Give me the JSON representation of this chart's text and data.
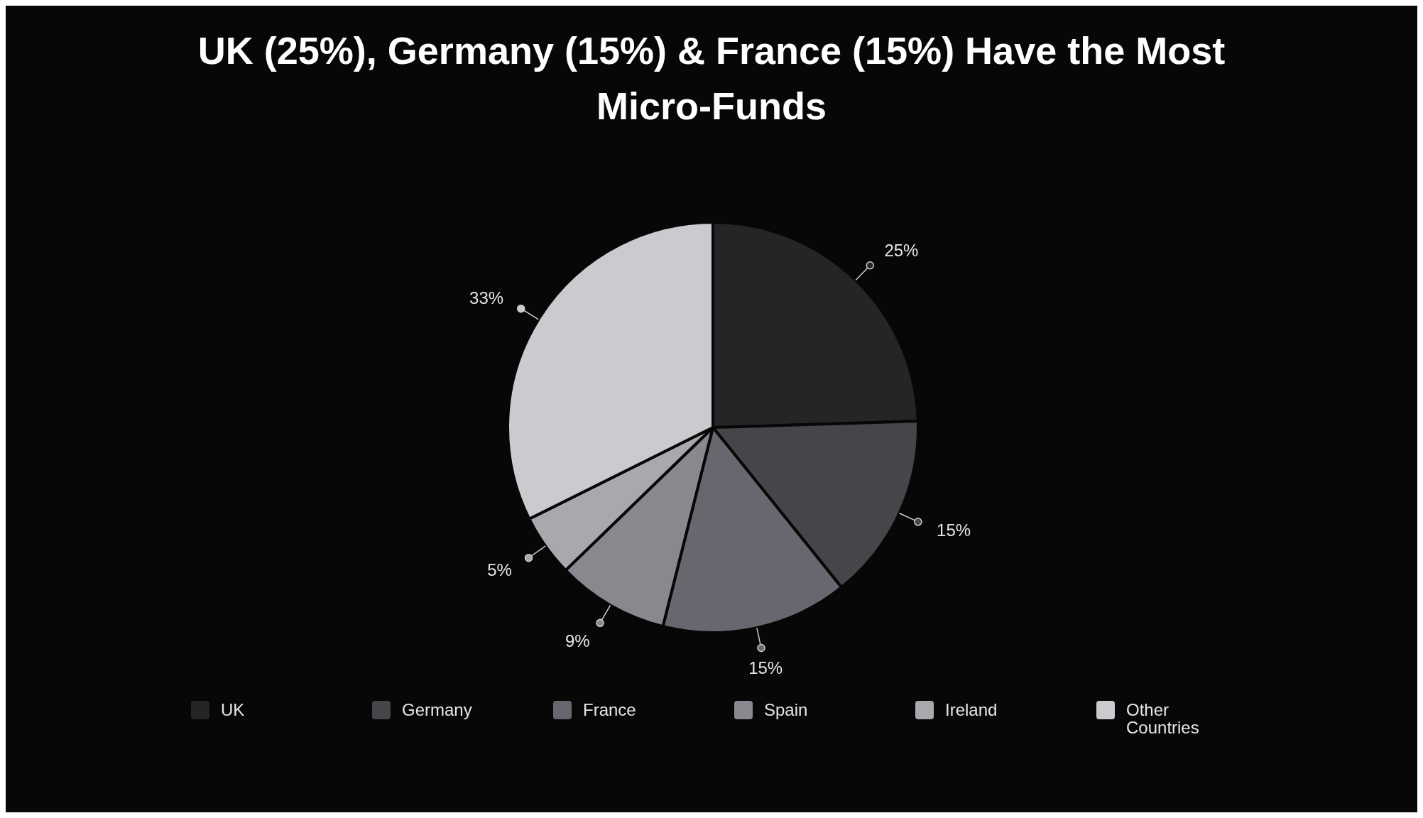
{
  "chart_data": {
    "type": "pie",
    "title": "UK (25%), Germany (15%) & France (15%) Have the Most Micro-Funds",
    "categories": [
      "UK",
      "Germany",
      "France",
      "Spain",
      "Ireland",
      "Other Countries"
    ],
    "values": [
      25,
      15,
      15,
      9,
      5,
      33
    ],
    "value_labels": [
      "25%",
      "15%",
      "15%",
      "9%",
      "5%",
      "33%"
    ],
    "colors": [
      "#252527",
      "#464549",
      "#67676f",
      "#88888f",
      "#a9a9ad",
      "#cacacf"
    ],
    "legend": "bottom"
  }
}
